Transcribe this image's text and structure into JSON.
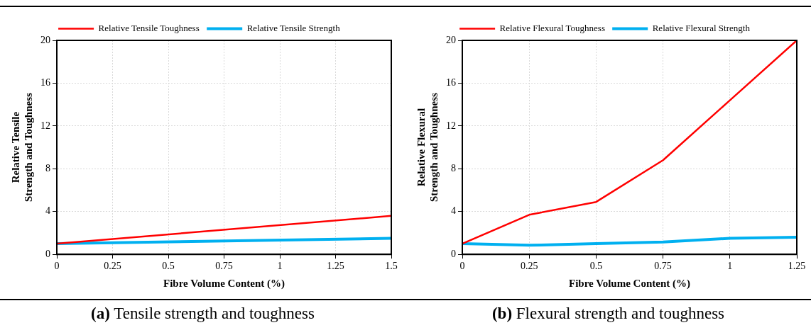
{
  "chart_data": [
    {
      "type": "line",
      "xlabel": "Fibre Volume Content (%)",
      "ylabel": "Relative Tensile Strength and Toughness",
      "x": [
        0,
        1.5
      ],
      "xlim": [
        0,
        1.5
      ],
      "xticks": [
        0,
        0.25,
        0.5,
        0.75,
        1,
        1.25,
        1.5
      ],
      "ylim": [
        0,
        20
      ],
      "yticks": [
        0,
        4,
        8,
        12,
        16,
        20
      ],
      "grid": true,
      "legend": "top",
      "marker": "none",
      "series": [
        {
          "name": "Relative Tensile Toughness",
          "color": "#ff0000",
          "values": [
            1,
            3.6
          ]
        },
        {
          "name": "Relative Tensile Strength",
          "color": "#00b0f0",
          "values": [
            1,
            1.5
          ]
        }
      ],
      "annotations": [
        "(a) Tensile strength and toughness"
      ]
    },
    {
      "type": "line",
      "xlabel": "Fibre Volume Content (%)",
      "ylabel": "Relative Flexural Strength and Toughness",
      "x": [
        0,
        0.25,
        0.5,
        0.75,
        1,
        1.25
      ],
      "xlim": [
        0,
        1.25
      ],
      "xticks": [
        0,
        0.25,
        0.5,
        0.75,
        1,
        1.25
      ],
      "ylim": [
        0,
        20
      ],
      "yticks": [
        0,
        4,
        8,
        12,
        16,
        20
      ],
      "grid": true,
      "legend": "top",
      "marker": "none",
      "series": [
        {
          "name": "Relative Flexural Toughness",
          "color": "#ff0000",
          "values": [
            1,
            3.7,
            4.9,
            8.8,
            14.4,
            20
          ]
        },
        {
          "name": "Relative Flexural Strength",
          "color": "#00b0f0",
          "values": [
            1,
            0.85,
            1,
            1.15,
            1.5,
            1.6
          ]
        }
      ],
      "annotations": [
        "(b) Flexural strength and toughness"
      ]
    }
  ]
}
